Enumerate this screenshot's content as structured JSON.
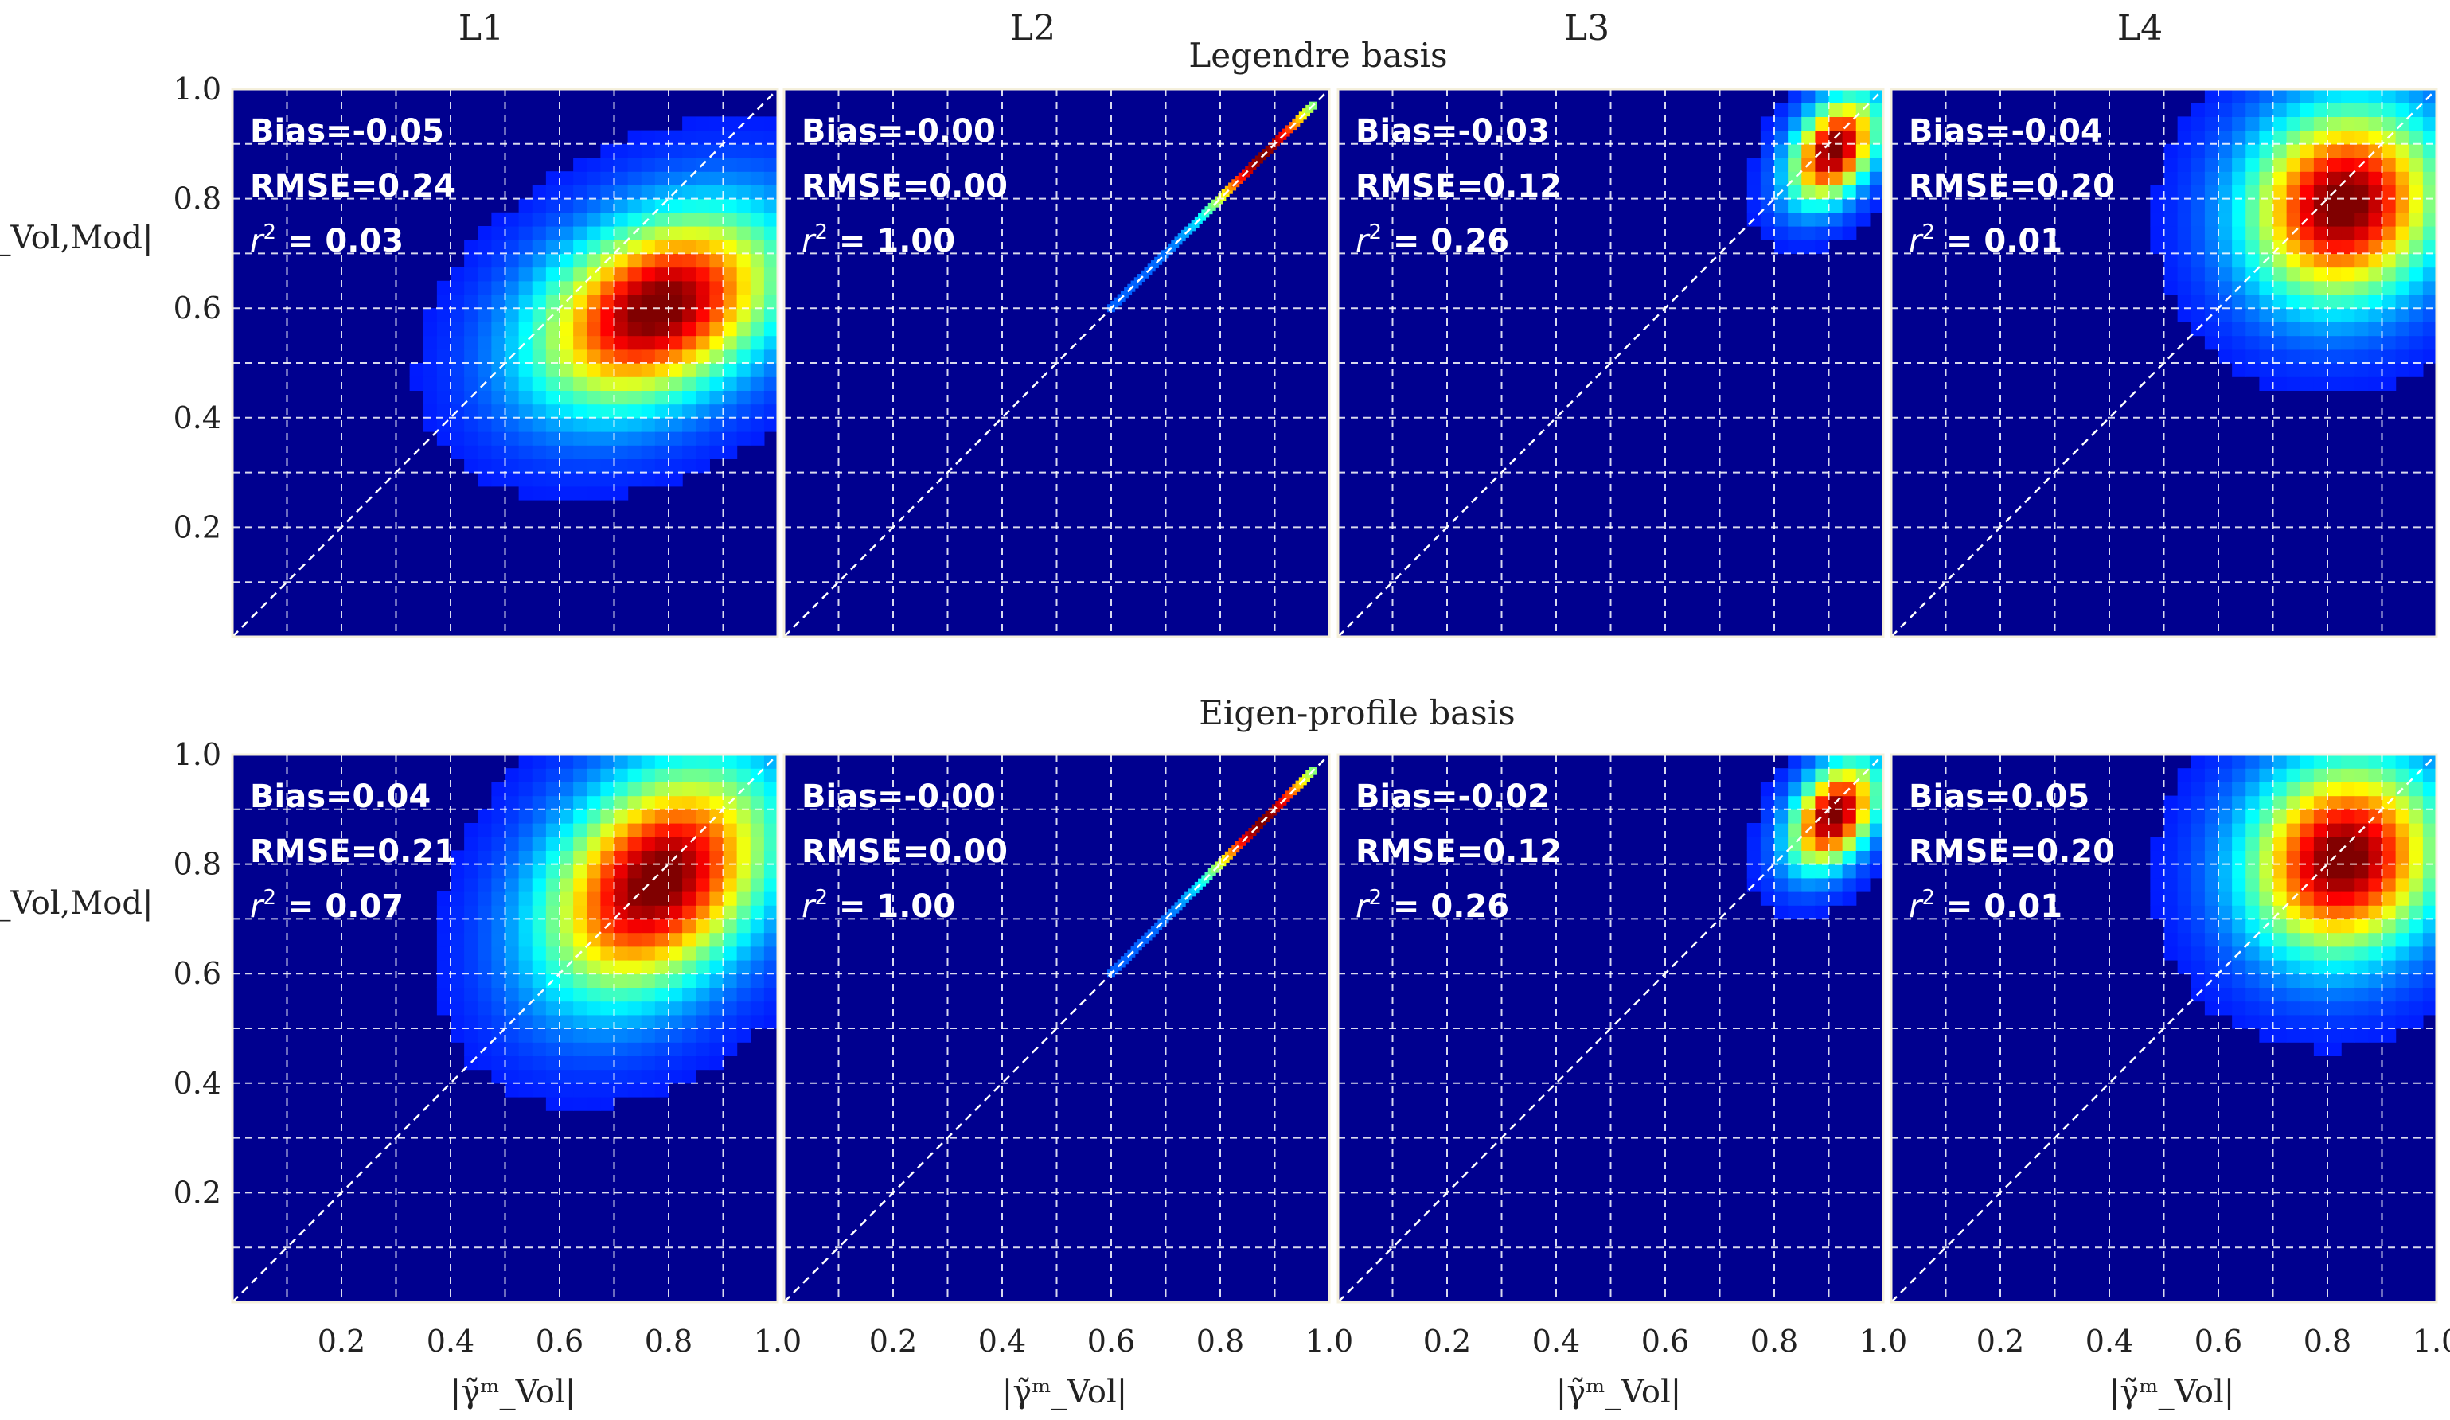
{
  "chart_data": {
    "type": "heatmap",
    "figure_layout": "2 rows x 4 columns of 2-D density scatter plots (jet colormap) with 1:1 dashed reference line",
    "column_labels": [
      "L1",
      "L2",
      "L3",
      "L4"
    ],
    "row_titles": [
      "Legendre basis",
      "Eigen-profile basis"
    ],
    "xlabel": "|γ̃ᵐ_Vol|",
    "ylabel": "|γ̃ᵐ_Vol,Mod|",
    "xlim": [
      0.0,
      1.0
    ],
    "ylim": [
      0.0,
      1.0
    ],
    "x_ticks": [
      "0.2",
      "0.4",
      "0.6",
      "0.8",
      "1.0"
    ],
    "y_ticks": [
      "0.2",
      "0.4",
      "0.6",
      "0.8",
      "1.0"
    ],
    "grid": "dashed white, step 0.1",
    "panels": [
      {
        "row": 0,
        "column": "L1",
        "bias": "Bias=-0.05",
        "rmse": "RMSE=0.24",
        "r2": "0.03",
        "peak_x": 0.78,
        "peak_y": 0.6,
        "spread_x": 0.14,
        "spread_y": 0.11,
        "rho": 0.35,
        "kind": "cloud"
      },
      {
        "row": 0,
        "column": "L2",
        "bias": "Bias=-0.00",
        "rmse": "RMSE=0.00",
        "r2": "1.00",
        "line_from": 0.6,
        "line_to": 0.97,
        "peak_x": 0.88,
        "kind": "line"
      },
      {
        "row": 0,
        "column": "L3",
        "bias": "Bias=-0.03",
        "rmse": "RMSE=0.12",
        "r2": "0.26",
        "peak_x": 0.91,
        "peak_y": 0.89,
        "spread_x": 0.05,
        "spread_y": 0.06,
        "rho": 0.4,
        "kind": "cloud"
      },
      {
        "row": 0,
        "column": "L4",
        "bias": "Bias=-0.04",
        "rmse": "RMSE=0.20",
        "r2": "0.01",
        "peak_x": 0.83,
        "peak_y": 0.79,
        "spread_x": 0.11,
        "spread_y": 0.11,
        "rho": 0.1,
        "kind": "cloud"
      },
      {
        "row": 1,
        "column": "L1",
        "bias": "Bias=0.04",
        "rmse": "RMSE=0.21",
        "r2": "0.07",
        "peak_x": 0.78,
        "peak_y": 0.77,
        "spread_x": 0.13,
        "spread_y": 0.13,
        "rho": 0.35,
        "kind": "cloud"
      },
      {
        "row": 1,
        "column": "L2",
        "bias": "Bias=-0.00",
        "rmse": "RMSE=0.00",
        "r2": "1.00",
        "line_from": 0.6,
        "line_to": 0.97,
        "peak_x": 0.88,
        "kind": "line"
      },
      {
        "row": 1,
        "column": "L3",
        "bias": "Bias=-0.02",
        "rmse": "RMSE=0.12",
        "r2": "0.26",
        "peak_x": 0.91,
        "peak_y": 0.89,
        "spread_x": 0.05,
        "spread_y": 0.06,
        "rho": 0.4,
        "kind": "cloud"
      },
      {
        "row": 1,
        "column": "L4",
        "bias": "Bias=0.05",
        "rmse": "RMSE=0.20",
        "r2": "0.01",
        "peak_x": 0.83,
        "peak_y": 0.81,
        "spread_x": 0.11,
        "spread_y": 0.11,
        "rho": 0.1,
        "kind": "cloud"
      }
    ],
    "colormap": "jet",
    "background_color": "#00008f",
    "frame_color": "#f5f0dc",
    "grid_color": "#ffffff"
  }
}
